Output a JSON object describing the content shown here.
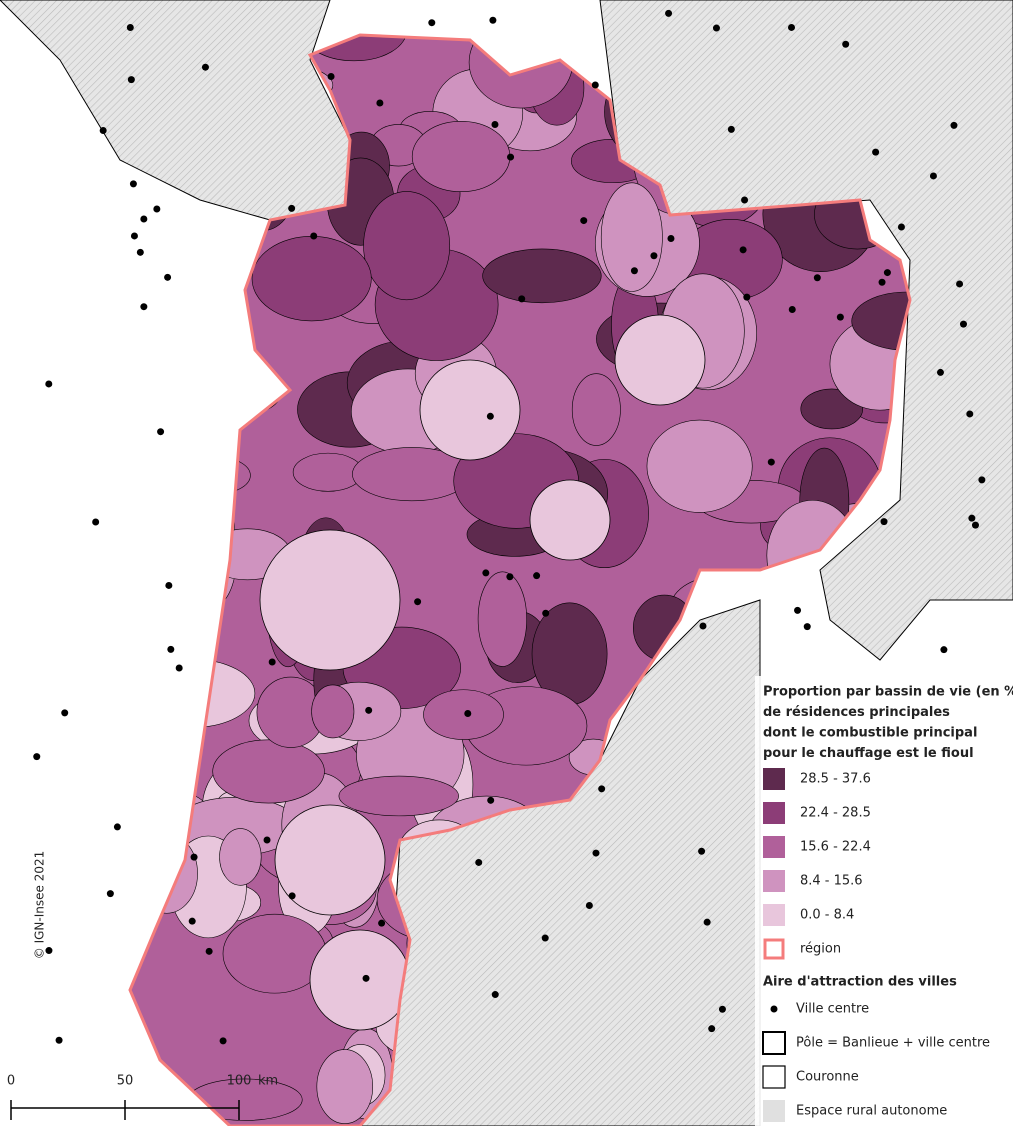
{
  "credit": "© IGN-Insee 2021",
  "scale_bar": {
    "labels": [
      "0",
      "50",
      "100"
    ],
    "unit": "km"
  },
  "legend": {
    "title_lines": [
      "Proportion par bassin de vie (en %)",
      " de résidences principales",
      "dont le combustible principal",
      "pour le chauffage est le fioul"
    ],
    "classes": [
      {
        "label": "28.5 - 37.6",
        "color": "#5e2a4e"
      },
      {
        "label": "22.4 - 28.5",
        "color": "#8c3d77"
      },
      {
        "label": "15.6 - 22.4",
        "color": "#b0609a"
      },
      {
        "label": "8.4 - 15.6",
        "color": "#cf93bf"
      },
      {
        "label": "0.0 - 8.4",
        "color": "#e8c6dc"
      }
    ],
    "region": {
      "label": "région",
      "color": "#f47c7c"
    },
    "attraction_title": "Aire d'attraction des villes",
    "attraction_items": [
      "Ville centre",
      "Pôle = Banlieue + ville centre",
      "Couronne",
      "Espace rural autonome"
    ]
  }
}
